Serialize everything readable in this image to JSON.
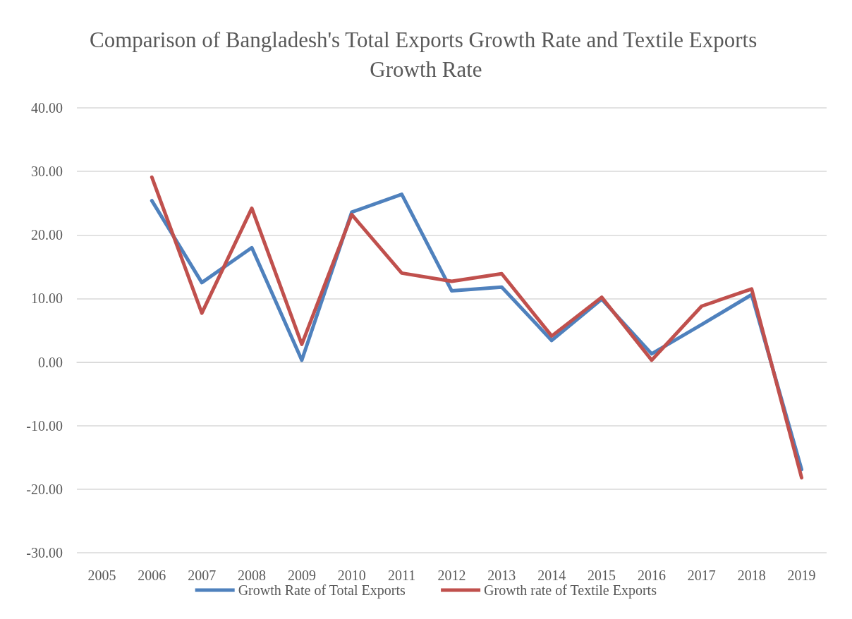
{
  "chart_data": {
    "type": "line",
    "title": "Comparison of Bangladesh's Total Exports Growth Rate and Textile Exports Growth Rate",
    "categories": [
      "2005",
      "2006",
      "2007",
      "2008",
      "2009",
      "2010",
      "2011",
      "2012",
      "2013",
      "2014",
      "2015",
      "2016",
      "2017",
      "2018",
      "2019"
    ],
    "series": [
      {
        "name": "Growth Rate of Total Exports",
        "color": "#4f81bd",
        "values": [
          null,
          25.4,
          12.5,
          18.0,
          0.3,
          23.6,
          26.4,
          11.2,
          11.8,
          3.4,
          9.9,
          1.3,
          5.9,
          10.6,
          -16.9
        ]
      },
      {
        "name": "Growth rate of Textile Exports",
        "color": "#c0504d",
        "values": [
          null,
          29.1,
          7.7,
          24.2,
          2.8,
          23.2,
          14.0,
          12.7,
          13.9,
          4.1,
          10.2,
          0.3,
          8.8,
          11.5,
          -18.2
        ]
      }
    ],
    "ylim": [
      -30,
      40
    ],
    "yticks": [
      {
        "value": -30,
        "label": "-30.00"
      },
      {
        "value": -20,
        "label": "-20.00"
      },
      {
        "value": -10,
        "label": "-10.00"
      },
      {
        "value": 0,
        "label": "0.00"
      },
      {
        "value": 10,
        "label": "10.00"
      },
      {
        "value": 20,
        "label": "20.00"
      },
      {
        "value": 30,
        "label": "30.00"
      },
      {
        "value": 40,
        "label": "40.00"
      }
    ],
    "grid": "y",
    "legend": "bottom",
    "marker": "none",
    "line_style": "solid"
  }
}
